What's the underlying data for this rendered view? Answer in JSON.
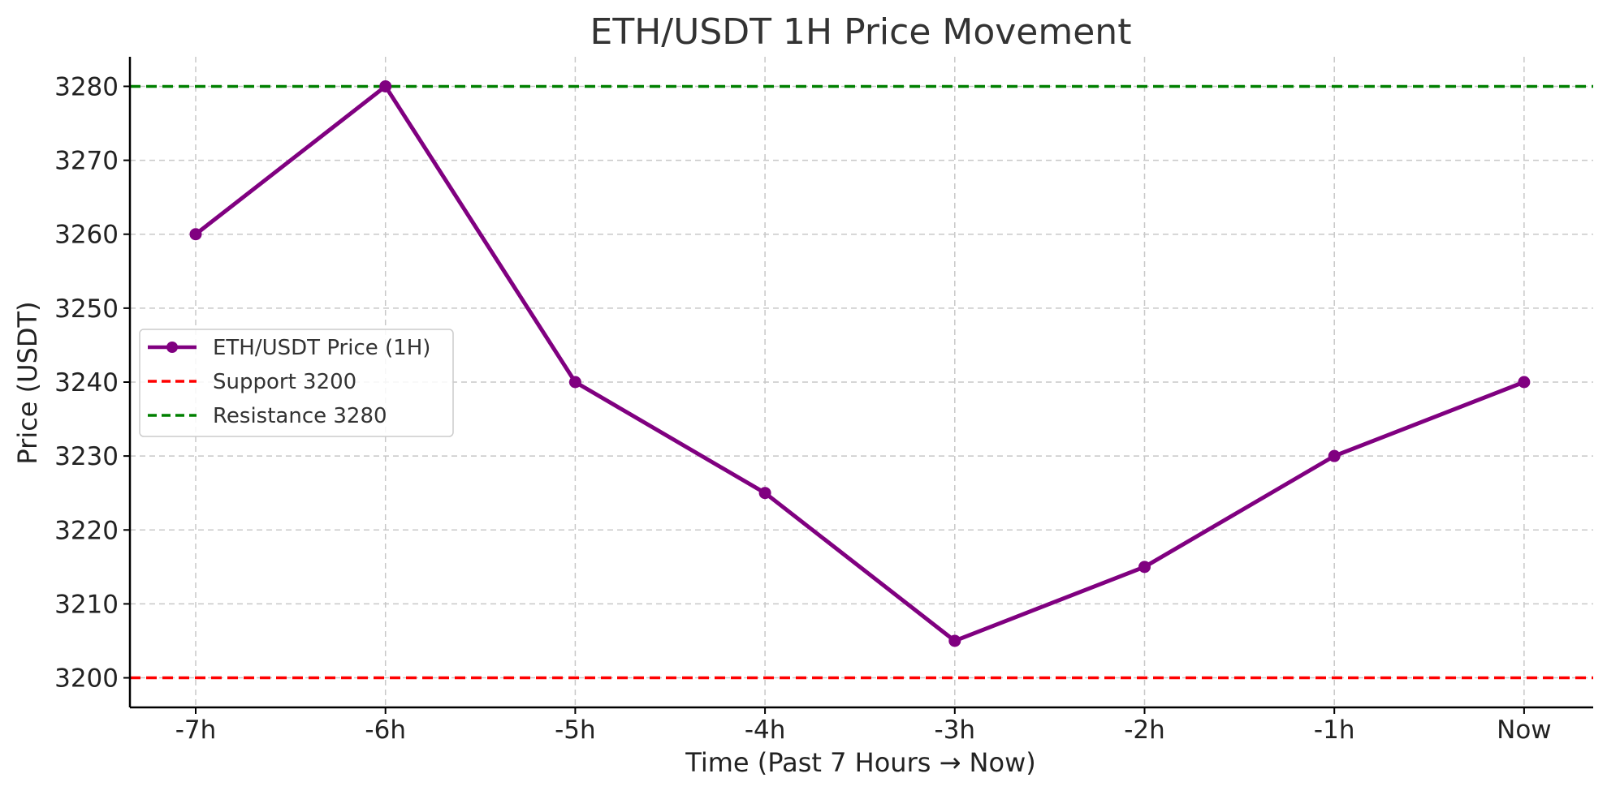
{
  "chart_data": {
    "type": "line",
    "title": "ETH/USDT 1H Price Movement",
    "xlabel": "Time (Past 7 Hours → Now)",
    "ylabel": "Price (USDT)",
    "categories": [
      "-7h",
      "-6h",
      "-5h",
      "-4h",
      "-3h",
      "-2h",
      "-1h",
      "Now"
    ],
    "yticks": [
      3200,
      3210,
      3220,
      3230,
      3240,
      3250,
      3260,
      3270,
      3280
    ],
    "ylim": [
      3196,
      3284
    ],
    "grid": true,
    "legend_position": "center-left",
    "series": [
      {
        "name": "ETH/USDT Price (1H)",
        "values": [
          3260,
          3280,
          3240,
          3225,
          3205,
          3215,
          3230,
          3240
        ],
        "color": "#800080",
        "marker": "circle"
      }
    ],
    "reference_lines": [
      {
        "name": "Support 3200",
        "value": 3200,
        "color": "#ff0000",
        "style": "dashed"
      },
      {
        "name": "Resistance 3280",
        "value": 3280,
        "color": "#008000",
        "style": "dashed"
      }
    ]
  }
}
